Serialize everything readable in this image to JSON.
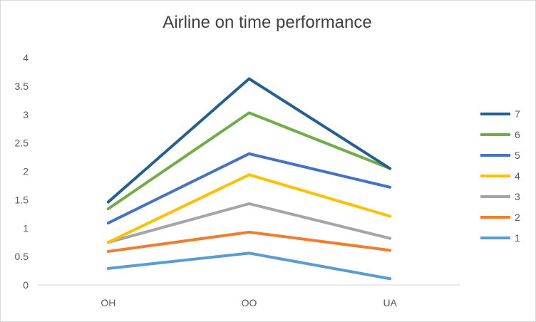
{
  "chart_data": {
    "type": "line",
    "title": "Airline on time performance",
    "categories": [
      "OH",
      "OO",
      "UA"
    ],
    "ylim": [
      0,
      4
    ],
    "yticks": [
      "0",
      "0.5",
      "1",
      "1.5",
      "2",
      "2.5",
      "3",
      "3.5",
      "4"
    ],
    "grid": false,
    "legend_position": "right",
    "series": [
      {
        "name": "1",
        "color": "#5b9bd5",
        "values": [
          0.29,
          0.56,
          0.11
        ]
      },
      {
        "name": "2",
        "color": "#ed7d31",
        "values": [
          0.59,
          0.93,
          0.61
        ]
      },
      {
        "name": "3",
        "color": "#a5a5a5",
        "values": [
          0.75,
          1.43,
          0.82
        ]
      },
      {
        "name": "4",
        "color": "#ffc000",
        "values": [
          0.75,
          1.94,
          1.21
        ]
      },
      {
        "name": "5",
        "color": "#4472c4",
        "values": [
          1.09,
          2.31,
          1.72
        ]
      },
      {
        "name": "6",
        "color": "#70ad47",
        "values": [
          1.34,
          3.03,
          2.05
        ]
      },
      {
        "name": "7",
        "color": "#255e91",
        "values": [
          1.46,
          3.63,
          2.05
        ]
      }
    ]
  }
}
